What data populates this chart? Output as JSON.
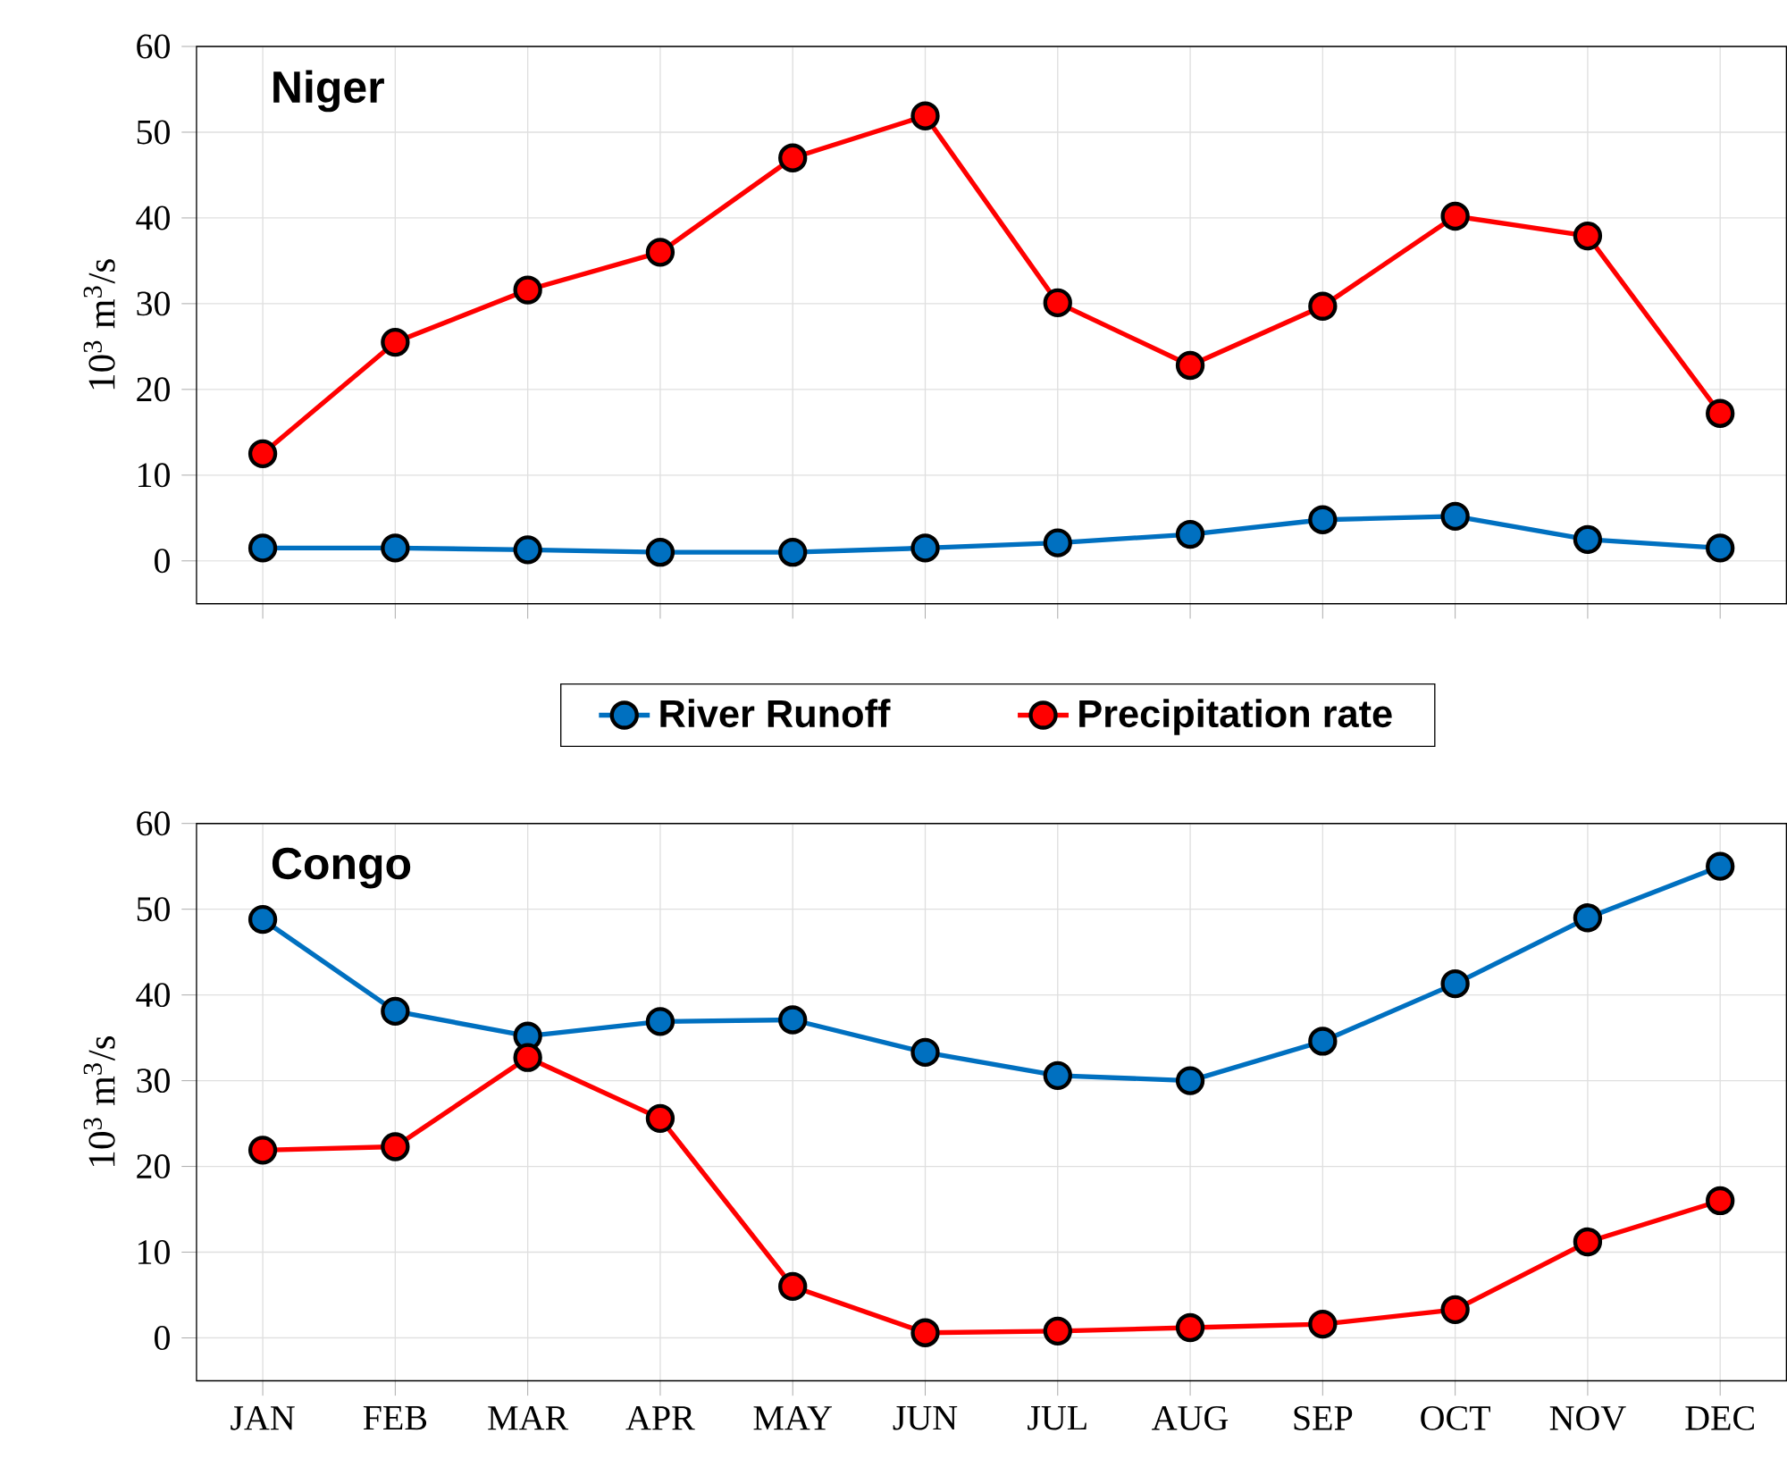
{
  "chart_data": [
    {
      "type": "line",
      "title": "Niger",
      "ylabel": "10$^{3}$ m$^{3}$/s",
      "categories": [
        null,
        null,
        null,
        null,
        null,
        null,
        null,
        null,
        null,
        null,
        null,
        null
      ],
      "series": [
        {
          "name": "River Runoff",
          "color": "#0070c0",
          "values": [
            1.5,
            1.5,
            1.3,
            1.0,
            1.0,
            1.5,
            2.1,
            3.1,
            4.8,
            5.2,
            2.5,
            1.5
          ]
        },
        {
          "name": "Precipitation rate",
          "color": "#ff0000",
          "values": [
            12.5,
            25.5,
            31.6,
            36,
            47,
            51.9,
            30.1,
            22.8,
            29.7,
            40.2,
            37.9,
            17.2
          ]
        }
      ],
      "ylim": [
        -5,
        60
      ],
      "yticks": [
        0,
        10,
        20,
        30,
        40,
        50,
        60
      ],
      "grid": true,
      "marker": "circle",
      "legend": "bottom",
      "tick_labels": "y"
    },
    {
      "type": "line",
      "title": "Congo",
      "ylabel": "10$^{3}$ m$^{3}$/s",
      "categories": [
        "JAN",
        "FEB",
        "MAR",
        "APR",
        "MAY",
        "JUN",
        "JUL",
        "AUG",
        "SEP",
        "OCT",
        "NOV",
        "DEC"
      ],
      "series": [
        {
          "color": "#0070c0",
          "values": [
            48.8,
            38.1,
            35.2,
            36.9,
            37.1,
            33.3,
            30.6,
            30,
            34.6,
            41.3,
            49,
            55
          ]
        },
        {
          "color": "#ff0000",
          "values": [
            21.9,
            22.3,
            32.7,
            25.6,
            6,
            0.6,
            0.8,
            1.2,
            1.6,
            3.3,
            11.2,
            16
          ]
        }
      ],
      "ylim": [
        -5,
        60
      ],
      "yticks": [
        0,
        10,
        20,
        30,
        40,
        50,
        60
      ],
      "grid": true,
      "marker": "circle"
    }
  ]
}
